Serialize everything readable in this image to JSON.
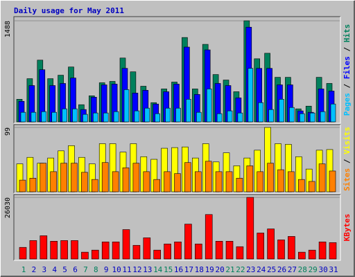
{
  "chart_data": [
    {
      "type": "bar",
      "title": "Daily usage for May 2011",
      "ylim": [
        0,
        1488
      ],
      "yticks": [
        1488
      ],
      "grid": true,
      "legend_separator": " / ",
      "series": [
        {
          "name": "Pages",
          "color": "#00c0ff",
          "values": [
            141,
            141,
            151,
            141,
            192,
            192,
            111,
            131,
            131,
            151,
            475,
            162,
            202,
            121,
            202,
            202,
            333,
            141,
            485,
            121,
            162,
            131,
            788,
            283,
            182,
            333,
            212,
            121,
            131,
            151,
            263
          ]
        },
        {
          "name": "Files",
          "color": "#0000ff",
          "values": [
            303,
            535,
            768,
            535,
            566,
            646,
            182,
            364,
            545,
            556,
            788,
            424,
            465,
            263,
            444,
            556,
            1101,
            404,
            1060,
            566,
            535,
            354,
            1394,
            788,
            788,
            545,
            545,
            162,
            141,
            485,
            454
          ]
        },
        {
          "name": "Hits",
          "color": "#00805c",
          "values": [
            333,
            636,
            909,
            636,
            687,
            808,
            253,
            384,
            576,
            596,
            940,
            737,
            525,
            283,
            485,
            586,
            1242,
            485,
            1141,
            697,
            616,
            444,
            1488,
            929,
            1010,
            656,
            656,
            192,
            232,
            656,
            566
          ]
        }
      ]
    },
    {
      "type": "bar",
      "ylim": [
        0,
        99
      ],
      "yticks": [
        99
      ],
      "grid": true,
      "legend_separator": " / ",
      "series": [
        {
          "name": "Sites",
          "color": "#ff8000",
          "values": [
            18,
            21,
            44,
            31,
            44,
            44,
            30,
            19,
            45,
            31,
            37,
            44,
            31,
            19,
            31,
            28,
            45,
            31,
            47,
            31,
            31,
            21,
            40,
            31,
            44,
            34,
            31,
            19,
            16,
            43,
            32
          ]
        },
        {
          "name": "Visits",
          "color": "#ffff00",
          "values": [
            43,
            53,
            44,
            52,
            63,
            71,
            53,
            43,
            74,
            74,
            61,
            74,
            54,
            50,
            67,
            68,
            69,
            52,
            74,
            46,
            60,
            40,
            52,
            64,
            99,
            74,
            73,
            54,
            35,
            64,
            65
          ]
        }
      ]
    },
    {
      "type": "bar",
      "ylim": [
        0,
        26030
      ],
      "yticks": [
        26030
      ],
      "grid": true,
      "categories": [
        "1",
        "2",
        "3",
        "4",
        "5",
        "6",
        "7",
        "8",
        "9",
        "10",
        "11",
        "12",
        "13",
        "14",
        "15",
        "16",
        "17",
        "18",
        "19",
        "20",
        "21",
        "22",
        "23",
        "24",
        "25",
        "26",
        "27",
        "28",
        "29",
        "30",
        "31"
      ],
      "category_colors": [
        "#00805c",
        "#0000c0",
        "#0000c0",
        "#0000c0",
        "#0000c0",
        "#0000c0",
        "#00805c",
        "#00805c",
        "#0000c0",
        "#0000c0",
        "#0000c0",
        "#0000c0",
        "#0000c0",
        "#00805c",
        "#00805c",
        "#0000c0",
        "#0000c0",
        "#0000c0",
        "#0000c0",
        "#0000c0",
        "#00805c",
        "#00805c",
        "#0000c0",
        "#0000c0",
        "#0000c0",
        "#0000c0",
        "#0000c0",
        "#00805c",
        "#00805c",
        "#0000c0",
        "#0000c0"
      ],
      "series": [
        {
          "name": "KBytes",
          "color": "#ff0000",
          "values": [
            4913,
            7803,
            9826,
            7514,
            7803,
            7803,
            2890,
            3757,
            7225,
            7225,
            12427,
            5780,
            8959,
            3757,
            6358,
            7225,
            14739,
            6358,
            18785,
            7514,
            7514,
            5202,
            26030,
            10982,
            12716,
            8092,
            9537,
            2890,
            3757,
            7225,
            6936
          ]
        }
      ]
    }
  ]
}
